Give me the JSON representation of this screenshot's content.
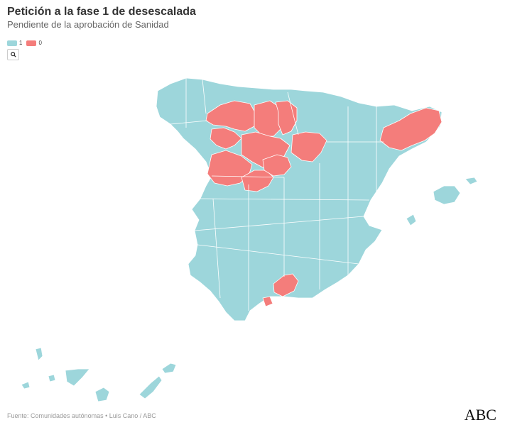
{
  "title": "Petición a la fase 1 de desescalada",
  "subtitle": "Pendiente de la aprobación de Sanidad",
  "legend": [
    {
      "label": "1",
      "color": "#9dd6db"
    },
    {
      "label": "0",
      "color": "#f47d7b"
    }
  ],
  "search_icon": "search-icon",
  "source": "Fuente: Comunidades autónomas • Luis Cano / ABC",
  "logo": "ABC",
  "colors": {
    "fase1": "#9dd6db",
    "pendiente": "#f47d7b",
    "border": "#ffffff"
  }
}
